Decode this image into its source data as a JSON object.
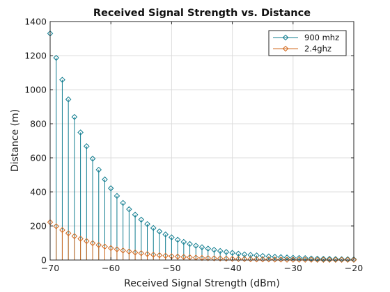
{
  "chart_data": {
    "type": "stem",
    "title": "Received Signal Strength vs. Distance",
    "xlabel": "Received Signal Strength (dBm)",
    "ylabel": "Distance (m)",
    "xlim": [
      -70,
      -20
    ],
    "ylim": [
      0,
      1400
    ],
    "xticks": [
      -70,
      -60,
      -50,
      -40,
      -30,
      -20
    ],
    "yticks": [
      0,
      200,
      400,
      600,
      800,
      1000,
      1200,
      1400
    ],
    "grid": true,
    "legend_position": "top-right",
    "x": [
      -70,
      -69,
      -68,
      -67,
      -66,
      -65,
      -64,
      -63,
      -62,
      -61,
      -60,
      -59,
      -58,
      -57,
      -56,
      -55,
      -54,
      -53,
      -52,
      -51,
      -50,
      -49,
      -48,
      -47,
      -46,
      -45,
      -44,
      -43,
      -42,
      -41,
      -40,
      -39,
      -38,
      -37,
      -36,
      -35,
      -34,
      -33,
      -32,
      -31,
      -30,
      -29,
      -28,
      -27,
      -26,
      -25,
      -24,
      -23,
      -22,
      -21,
      -20
    ],
    "series": [
      {
        "name": "900 mhz",
        "color": "#0f7c8f",
        "marker": "diamond",
        "values": [
          1330,
          1187,
          1058,
          943,
          840,
          749,
          668,
          595,
          530,
          473,
          421,
          376,
          335,
          298,
          266,
          237,
          211,
          188,
          168,
          150,
          133,
          119,
          106,
          94,
          84,
          75,
          67,
          60,
          53,
          47,
          42,
          37,
          33,
          30,
          27,
          24,
          21,
          19,
          17,
          15,
          13,
          12,
          11,
          9,
          8,
          7,
          7,
          6,
          5,
          5,
          4
        ]
      },
      {
        "name": "2.4ghz",
        "color": "#d2691e",
        "marker": "diamond",
        "values": [
          222,
          198,
          176,
          157,
          140,
          125,
          111,
          99,
          88,
          79,
          70,
          63,
          56,
          50,
          44,
          40,
          35,
          31,
          28,
          25,
          22,
          20,
          18,
          16,
          14,
          12,
          11,
          10,
          9,
          8,
          7,
          6,
          6,
          5,
          4,
          4,
          4,
          3,
          3,
          2,
          2,
          2,
          2,
          2,
          1,
          1,
          1,
          1,
          1,
          1,
          1
        ]
      }
    ]
  }
}
